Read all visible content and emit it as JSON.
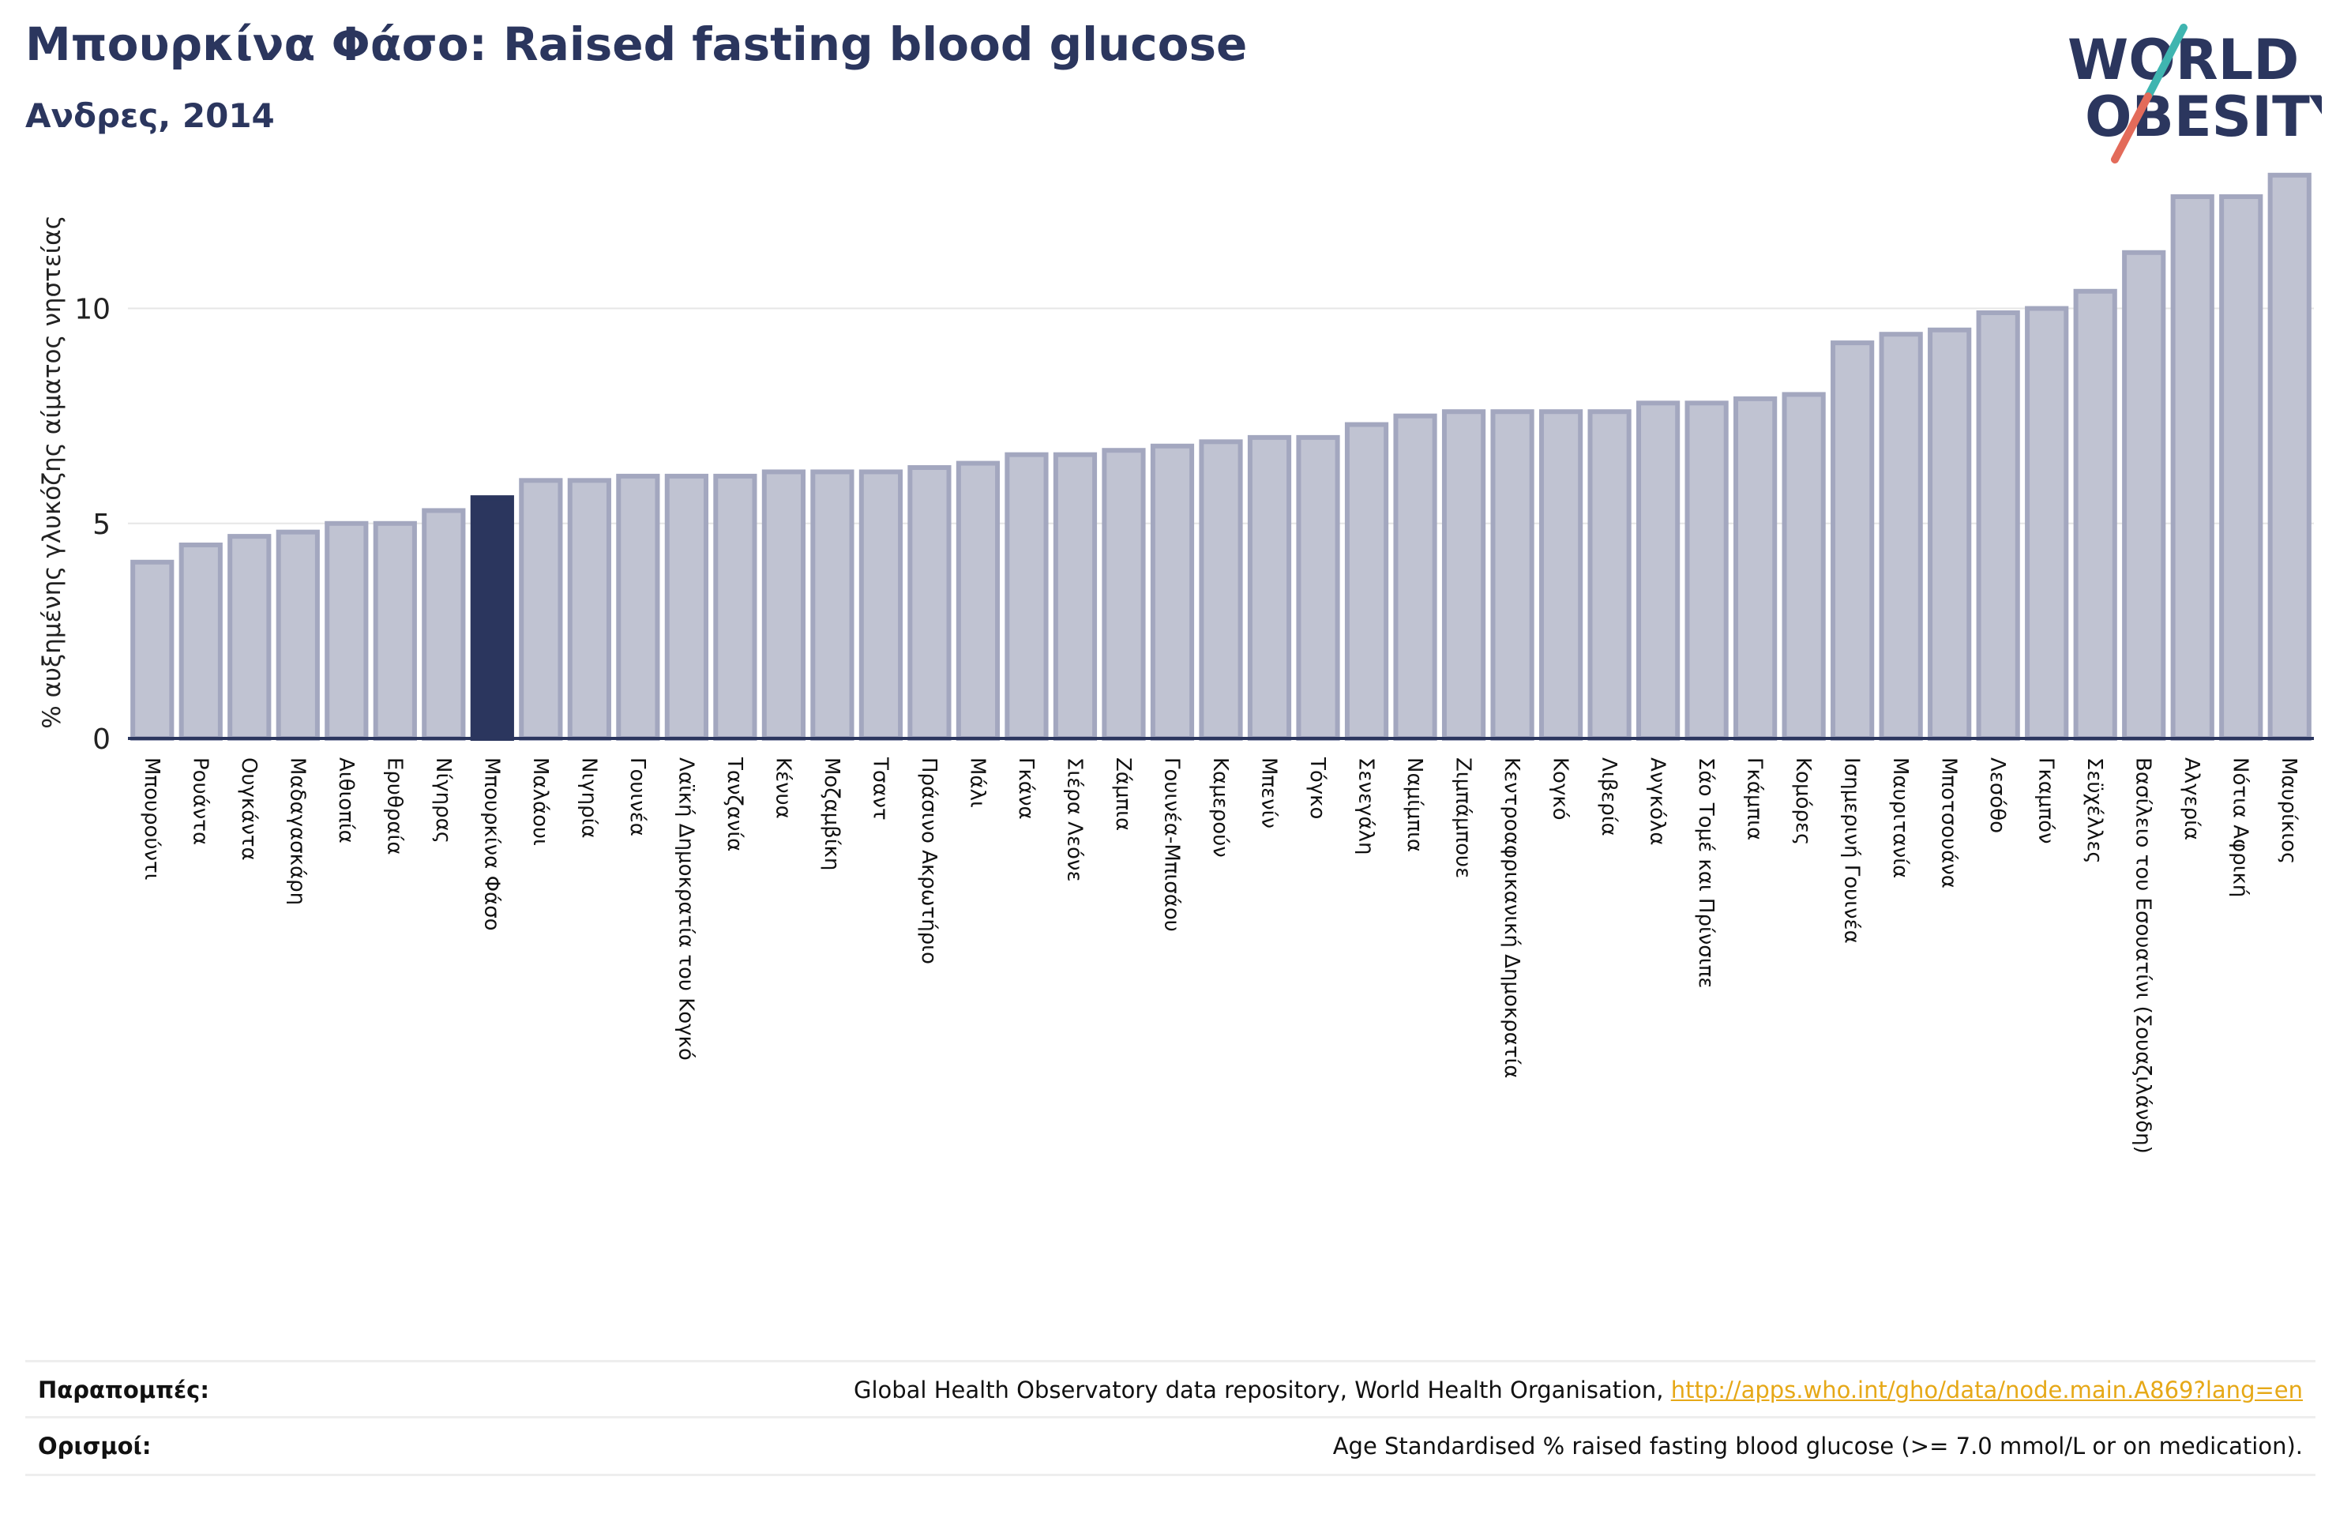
{
  "header": {
    "title": "Μπουρκίνα Φάσο: Raised fasting blood glucose",
    "subtitle": "Ανδρες, 2014"
  },
  "logo": {
    "line1": "WORLD",
    "line2": "OBESITY",
    "text_color": "#2b365e",
    "slash_top_color": "#3fb5b0",
    "slash_bottom_color": "#e36b5a"
  },
  "colors": {
    "bar": "#c0c3d2",
    "bar_stroke": "#a3a7bf",
    "highlight": "#2b365e",
    "grid": "#e6e6e6",
    "axis": "#2b365e"
  },
  "chart_data": {
    "type": "bar",
    "ylabel": "% αυξημένης γλυκόζης αίματος νηστείας",
    "ylim": [
      0,
      13.5
    ],
    "yticks": [
      0,
      5,
      10
    ],
    "grid": true,
    "highlight": "Μπουρκίνα Φάσο",
    "categories": [
      "Μπουρούντι",
      "Ρουάντα",
      "Ουγκάντα",
      "Μαδαγασκάρη",
      "Αιθιοπία",
      "Ερυθραία",
      "Νίγηρας",
      "Μπουρκίνα Φάσο",
      "Μαλάουι",
      "Νιγηρία",
      "Γουινέα",
      "Λαϊκή Δημοκρατία του Κογκό",
      "Τανζανία",
      "Κένυα",
      "Μοζαμβίκη",
      "Τσαντ",
      "Πράσινο Ακρωτήριο",
      "Μάλι",
      "Γκάνα",
      "Σιέρα Λεόνε",
      "Ζάμπια",
      "Γουινέα-Μπισάου",
      "Καμερούν",
      "Μπενίν",
      "Τόγκο",
      "Σενεγάλη",
      "Ναμίμπια",
      "Ζιμπάμπουε",
      "Κεντροαφρικανική Δημοκρατία",
      "Κογκό",
      "Λιβερία",
      "Ανγκόλα",
      "Σάο Τομέ και Πρίνσιπε",
      "Γκάμπια",
      "Κομόρες",
      "Ισημερινή Γουινέα",
      "Μαυριτανία",
      "Μποτσουάνα",
      "Λεσόθο",
      "Γκαμπόν",
      "Σεϋχέλλες",
      "Βασίλειο του Εσουατίνι (Σουαζιλάνδη)",
      "Αλγερία",
      "Νότια Αφρική",
      "Μαυρίκιος"
    ],
    "values": [
      4.1,
      4.5,
      4.7,
      4.8,
      5.0,
      5.0,
      5.3,
      5.6,
      6.0,
      6.0,
      6.1,
      6.1,
      6.1,
      6.2,
      6.2,
      6.2,
      6.3,
      6.4,
      6.6,
      6.6,
      6.7,
      6.8,
      6.9,
      7.0,
      7.0,
      7.3,
      7.5,
      7.6,
      7.6,
      7.6,
      7.6,
      7.8,
      7.8,
      7.9,
      8.0,
      9.2,
      9.4,
      9.5,
      9.9,
      10.0,
      10.4,
      11.3,
      12.6,
      12.6,
      13.1
    ]
  },
  "footer": {
    "references_label": "Παραπομπές:",
    "references_text": "Global Health Observatory data repository, World Health Organisation, ",
    "references_link": "http://apps.who.int/gho/data/node.main.A869?lang=en",
    "definitions_label": "Ορισμοί:",
    "definitions_text": "Age Standardised % raised fasting blood glucose (>= 7.0 mmol/L or on medication)."
  }
}
